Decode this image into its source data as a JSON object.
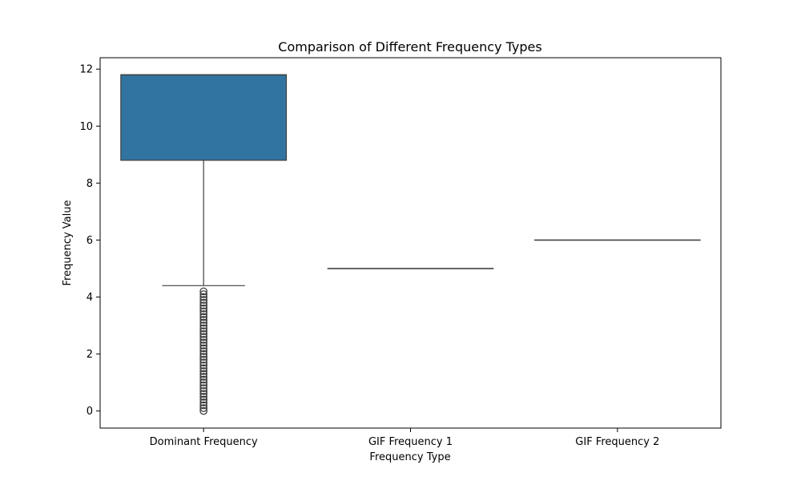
{
  "chart_data": {
    "type": "box",
    "title": "Comparison of Different Frequency Types",
    "xlabel": "Frequency Type",
    "ylabel": "Frequency Value",
    "ylim": [
      -0.6,
      12.4
    ],
    "yticks": [
      0,
      2,
      4,
      6,
      8,
      10,
      12
    ],
    "grid": false,
    "categories": [
      "Dominant Frequency",
      "GIF Frequency 1",
      "GIF Frequency 2"
    ],
    "color": "#3274a1",
    "boxes": [
      {
        "category": "Dominant Frequency",
        "q1": 8.8,
        "median": 11.8,
        "q3": 11.8,
        "whisker_low": 4.4,
        "whisker_high": 11.8,
        "outliers": [
          0,
          0.1,
          0.2,
          0.3,
          0.4,
          0.5,
          0.6,
          0.7,
          0.8,
          0.9,
          1.0,
          1.1,
          1.2,
          1.3,
          1.4,
          1.5,
          1.6,
          1.7,
          1.8,
          1.9,
          2.0,
          2.1,
          2.2,
          2.3,
          2.4,
          2.5,
          2.6,
          2.7,
          2.8,
          2.9,
          3.0,
          3.1,
          3.2,
          3.3,
          3.4,
          3.5,
          3.6,
          3.7,
          3.8,
          3.9,
          4.0,
          4.1,
          4.2
        ]
      },
      {
        "category": "GIF Frequency 1",
        "q1": 5.0,
        "median": 5.0,
        "q3": 5.0,
        "whisker_low": 5.0,
        "whisker_high": 5.0,
        "outliers": []
      },
      {
        "category": "GIF Frequency 2",
        "q1": 6.0,
        "median": 6.0,
        "q3": 6.0,
        "whisker_low": 6.0,
        "whisker_high": 6.0,
        "outliers": []
      }
    ]
  }
}
